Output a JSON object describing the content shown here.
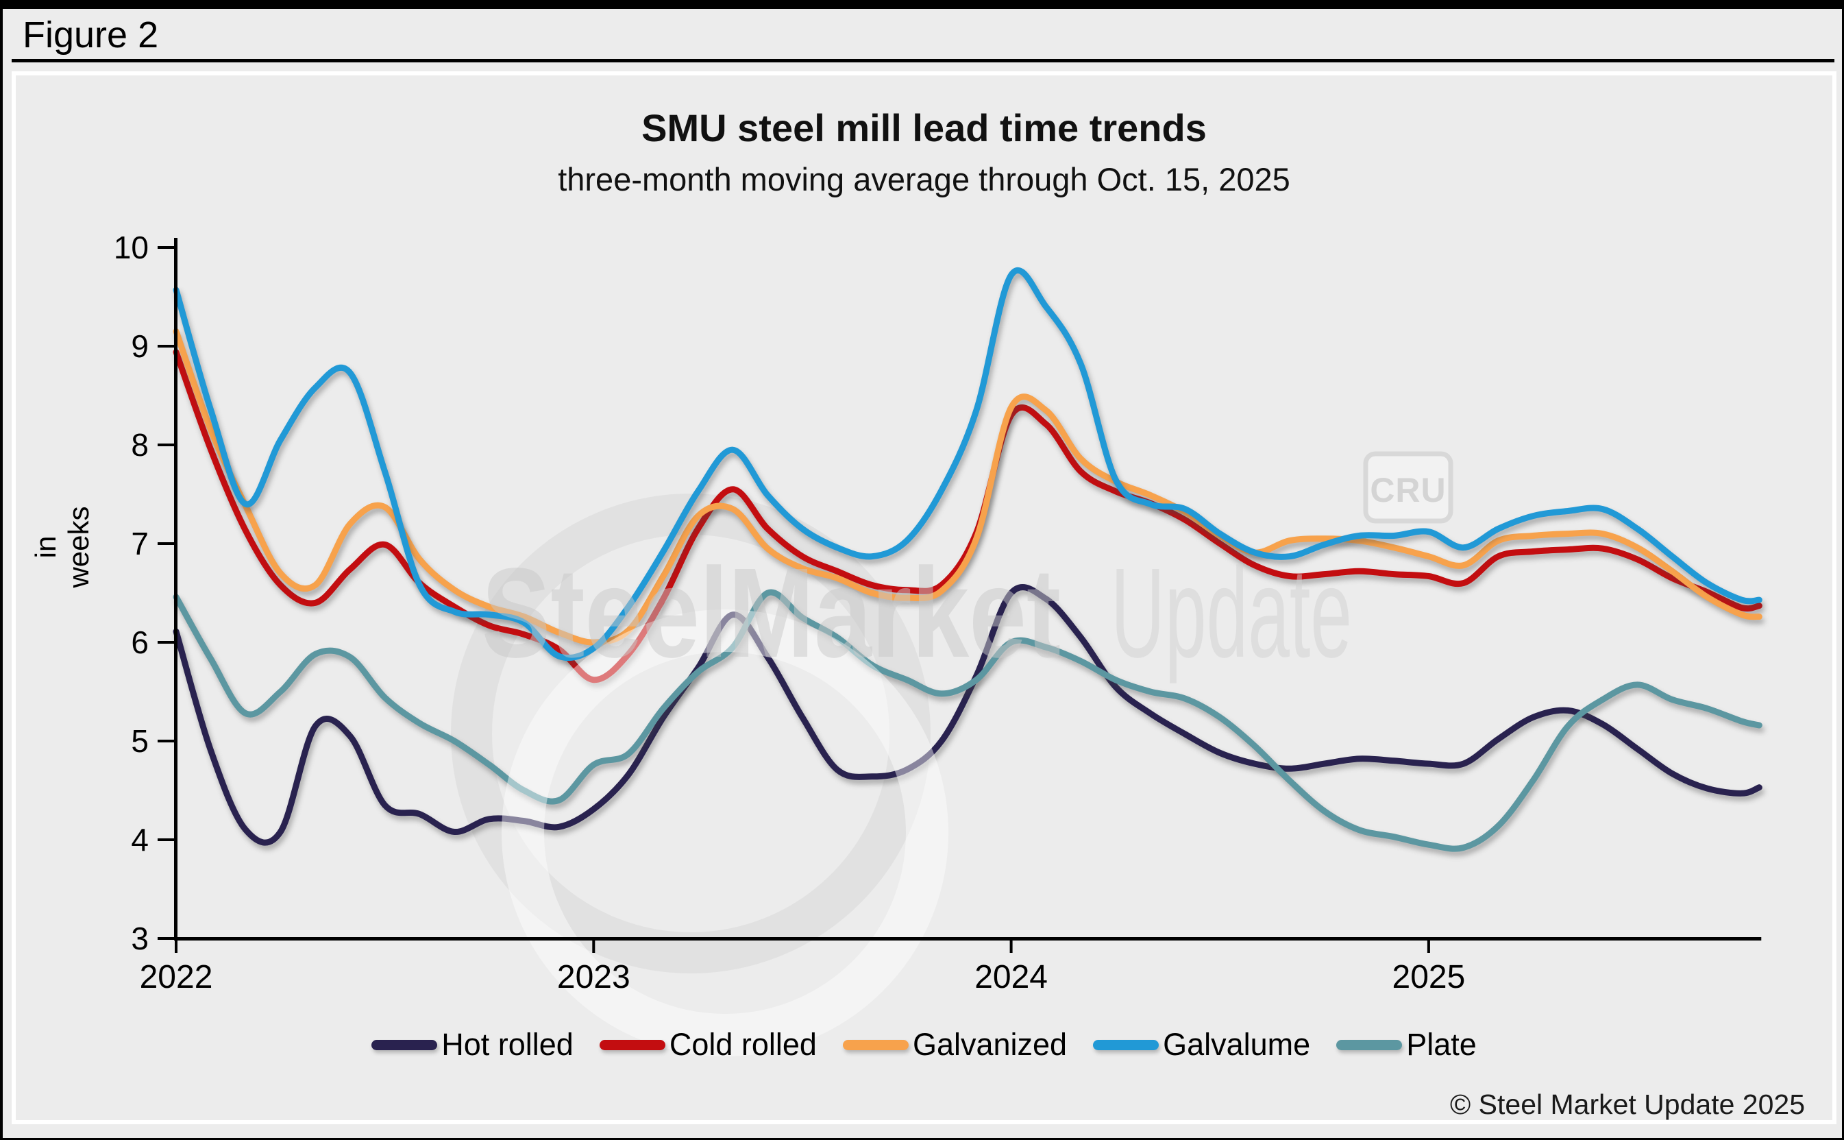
{
  "figure_label": "Figure 2",
  "header": {
    "title": "SMU steel mill lead time trends",
    "subtitle": "three-month moving average through Oct. 15, 2025"
  },
  "copyright": "© Steel Market Update 2025",
  "watermark": {
    "brand_bold": "SteelMarket",
    "brand_light": "Update",
    "badge": "CRU"
  },
  "chart_data": {
    "type": "line",
    "title": "SMU steel mill lead time trends",
    "subtitle": "three-month moving average through Oct. 15, 2025",
    "ylabel": "in weeks",
    "ylim": [
      3,
      10
    ],
    "y_ticks": [
      "10",
      "9",
      "8",
      "7",
      "6",
      "5",
      "4",
      "3"
    ],
    "x_tick_years": [
      "2022",
      "2023",
      "2024",
      "2025"
    ],
    "x_start_year": 2022,
    "x_end_year_fraction": 2025.7917,
    "sampling": "monthly Jan 2022 – Oct 2025 plus final value at Oct 15, 2025",
    "grid": "off",
    "legend_position": "bottom",
    "series": [
      {
        "name": "Hot rolled",
        "color": "#29224F",
        "values": [
          6.11,
          4.9,
          4.1,
          4.08,
          5.15,
          5.05,
          4.35,
          4.26,
          4.08,
          4.21,
          4.19,
          4.13,
          4.31,
          4.66,
          5.24,
          5.74,
          6.28,
          5.85,
          5.24,
          4.71,
          4.64,
          4.71,
          5.0,
          5.66,
          6.5,
          6.44,
          6.05,
          5.55,
          5.28,
          5.07,
          4.88,
          4.77,
          4.72,
          4.77,
          4.82,
          4.8,
          4.77,
          4.77,
          5.02,
          5.24,
          5.31,
          5.17,
          4.92,
          4.67,
          4.52,
          4.47,
          4.53
        ]
      },
      {
        "name": "Cold rolled",
        "color": "#C30D10",
        "values": [
          8.94,
          7.95,
          7.13,
          6.58,
          6.4,
          6.74,
          6.99,
          6.6,
          6.36,
          6.17,
          6.08,
          5.93,
          5.62,
          5.88,
          6.44,
          7.15,
          7.55,
          7.15,
          6.87,
          6.72,
          6.58,
          6.53,
          6.58,
          7.11,
          8.3,
          8.21,
          7.73,
          7.53,
          7.41,
          7.24,
          7.0,
          6.78,
          6.67,
          6.69,
          6.72,
          6.69,
          6.67,
          6.6,
          6.87,
          6.92,
          6.94,
          6.95,
          6.84,
          6.65,
          6.51,
          6.35,
          6.37
        ]
      },
      {
        "name": "Galvanized",
        "color": "#F7A24C",
        "values": [
          9.15,
          8.15,
          7.38,
          6.7,
          6.58,
          7.2,
          7.37,
          6.84,
          6.53,
          6.36,
          6.26,
          6.1,
          6.0,
          6.12,
          6.67,
          7.28,
          7.35,
          6.95,
          6.75,
          6.65,
          6.5,
          6.45,
          6.52,
          7.05,
          8.38,
          8.35,
          7.86,
          7.63,
          7.49,
          7.32,
          7.08,
          6.91,
          7.03,
          7.05,
          7.03,
          6.96,
          6.87,
          6.78,
          7.03,
          7.08,
          7.1,
          7.1,
          6.96,
          6.72,
          6.46,
          6.28,
          6.26
        ]
      },
      {
        "name": "Galvalume",
        "color": "#2199D6",
        "values": [
          9.57,
          8.35,
          7.4,
          8.05,
          8.58,
          8.73,
          7.73,
          6.58,
          6.31,
          6.28,
          6.2,
          5.86,
          5.94,
          6.36,
          6.92,
          7.53,
          7.95,
          7.49,
          7.15,
          6.96,
          6.87,
          7.03,
          7.54,
          8.35,
          9.72,
          9.4,
          8.82,
          7.65,
          7.4,
          7.35,
          7.1,
          6.91,
          6.87,
          6.99,
          7.08,
          7.08,
          7.12,
          6.96,
          7.15,
          7.28,
          7.33,
          7.35,
          7.15,
          6.87,
          6.6,
          6.43,
          6.43
        ]
      },
      {
        "name": "Plate",
        "color": "#5C97A1",
        "values": [
          6.46,
          5.83,
          5.28,
          5.5,
          5.88,
          5.85,
          5.44,
          5.18,
          5.0,
          4.76,
          4.5,
          4.4,
          4.76,
          4.87,
          5.33,
          5.7,
          5.95,
          6.5,
          6.25,
          6.05,
          5.77,
          5.62,
          5.48,
          5.62,
          6.0,
          5.95,
          5.81,
          5.62,
          5.5,
          5.43,
          5.24,
          4.95,
          4.6,
          4.29,
          4.1,
          4.03,
          3.95,
          3.92,
          4.14,
          4.6,
          5.15,
          5.42,
          5.57,
          5.42,
          5.33,
          5.2,
          5.16
        ]
      }
    ]
  }
}
